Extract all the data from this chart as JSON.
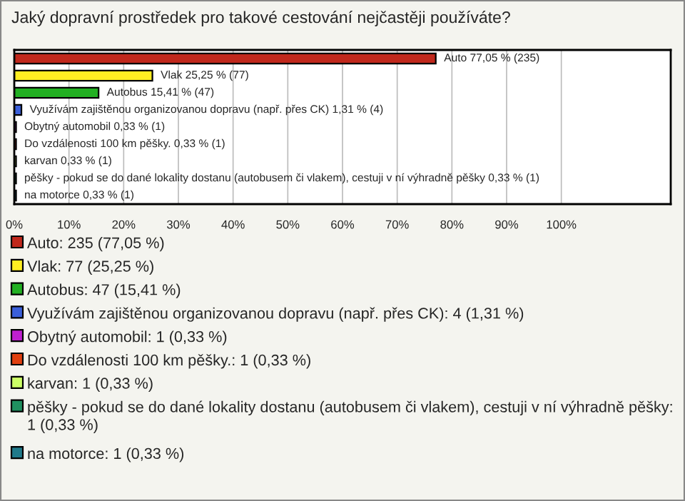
{
  "chart_data": {
    "type": "bar",
    "orientation": "horizontal",
    "stacked": true,
    "title": "Jaký dopravní prostředek pro takové cestování nejčastěji používáte?",
    "categories": [
      null,
      null,
      null,
      null,
      null,
      null,
      null,
      null,
      null
    ],
    "series": [
      {
        "name": "Auto: 235 (77,05 %)",
        "color": "#c0281c",
        "values": [
          77.05,
          null,
          null,
          null,
          null,
          null,
          null,
          null,
          null
        ],
        "value_labels": [
          "Auto 77,05 % (235)",
          null,
          null,
          null,
          null,
          null,
          null,
          null,
          null
        ]
      },
      {
        "name": "Vlak: 77 (25,25 %)",
        "color": "#ffee22",
        "values": [
          null,
          25.25,
          null,
          null,
          null,
          null,
          null,
          null,
          null
        ],
        "value_labels": [
          null,
          "Vlak 25,25 % (77)",
          null,
          null,
          null,
          null,
          null,
          null,
          null
        ]
      },
      {
        "name": "Autobus: 47 (15,41 %)",
        "color": "#22b022",
        "values": [
          null,
          null,
          15.41,
          null,
          null,
          null,
          null,
          null,
          null
        ],
        "value_labels": [
          null,
          null,
          "Autobus 15,41 % (47)",
          null,
          null,
          null,
          null,
          null,
          null
        ]
      },
      {
        "name": "Využívám zajištěnou organizovanou dopravu (např. přes CK): 4 (1,31 %)",
        "color": "#3a5fd9",
        "values": [
          null,
          null,
          null,
          1.31,
          null,
          null,
          null,
          null,
          null
        ],
        "value_labels": [
          null,
          null,
          null,
          "Využívám zajištěnou organizovanou dopravu (např. přes CK) 1,31 % (4)",
          null,
          null,
          null,
          null,
          null
        ]
      },
      {
        "name": "Obytný automobil: 1 (0,33 %)",
        "color": "#c020d0",
        "values": [
          null,
          null,
          null,
          null,
          0.33,
          null,
          null,
          null,
          null
        ],
        "value_labels": [
          null,
          null,
          null,
          null,
          "Obytný automobil 0,33 % (1)",
          null,
          null,
          null,
          null
        ]
      },
      {
        "name": "Do vzdálenosti 100 km pěšky.: 1 (0,33 %)",
        "color": "#e04010",
        "values": [
          null,
          null,
          null,
          null,
          null,
          0.33,
          null,
          null,
          null
        ],
        "value_labels": [
          null,
          null,
          null,
          null,
          null,
          "Do vzdálenosti 100 km pěšky. 0,33 % (1)",
          null,
          null,
          null
        ]
      },
      {
        "name": "karvan: 1 (0,33 %)",
        "color": "#ccff66",
        "values": [
          null,
          null,
          null,
          null,
          null,
          null,
          0.33,
          null,
          null
        ],
        "value_labels": [
          null,
          null,
          null,
          null,
          null,
          null,
          "karvan 0,33 % (1)",
          null,
          null
        ]
      },
      {
        "name": "pěšky - pokud se do dané lokality dostanu (autobusem či vlakem), cestuji v ní výhradně pěšky: 1 (0,33 %)",
        "color": "#209060",
        "values": [
          null,
          null,
          null,
          null,
          null,
          null,
          null,
          0.33,
          null
        ],
        "value_labels": [
          null,
          null,
          null,
          null,
          null,
          null,
          null,
          "pěšky - pokud se do dané lokality dostanu (autobusem či vlakem), cestuji v ní výhradně pěšky 0,33 % (1)",
          null
        ]
      },
      {
        "name": "na motorce: 1 (0,33 %)",
        "color": "#207a8a",
        "values": [
          null,
          null,
          null,
          null,
          null,
          null,
          null,
          null,
          0.33
        ],
        "value_labels": [
          null,
          null,
          null,
          null,
          null,
          null,
          null,
          null,
          "na motorce 0,33 % (1)"
        ]
      }
    ],
    "xlim": [
      0,
      120
    ],
    "xticks": [
      {
        "value": 0,
        "label": "0%"
      },
      {
        "value": 10,
        "label": "10%"
      },
      {
        "value": 20,
        "label": "20%"
      },
      {
        "value": 30,
        "label": "30%"
      },
      {
        "value": 40,
        "label": "40%"
      },
      {
        "value": 50,
        "label": "50%"
      },
      {
        "value": 60,
        "label": "60%"
      },
      {
        "value": 70,
        "label": "70%"
      },
      {
        "value": 80,
        "label": "80%"
      },
      {
        "value": 90,
        "label": "90%"
      },
      {
        "value": 100,
        "label": "100%"
      }
    ],
    "grid": "x",
    "legend": "bottom",
    "tick_labels": "x"
  }
}
